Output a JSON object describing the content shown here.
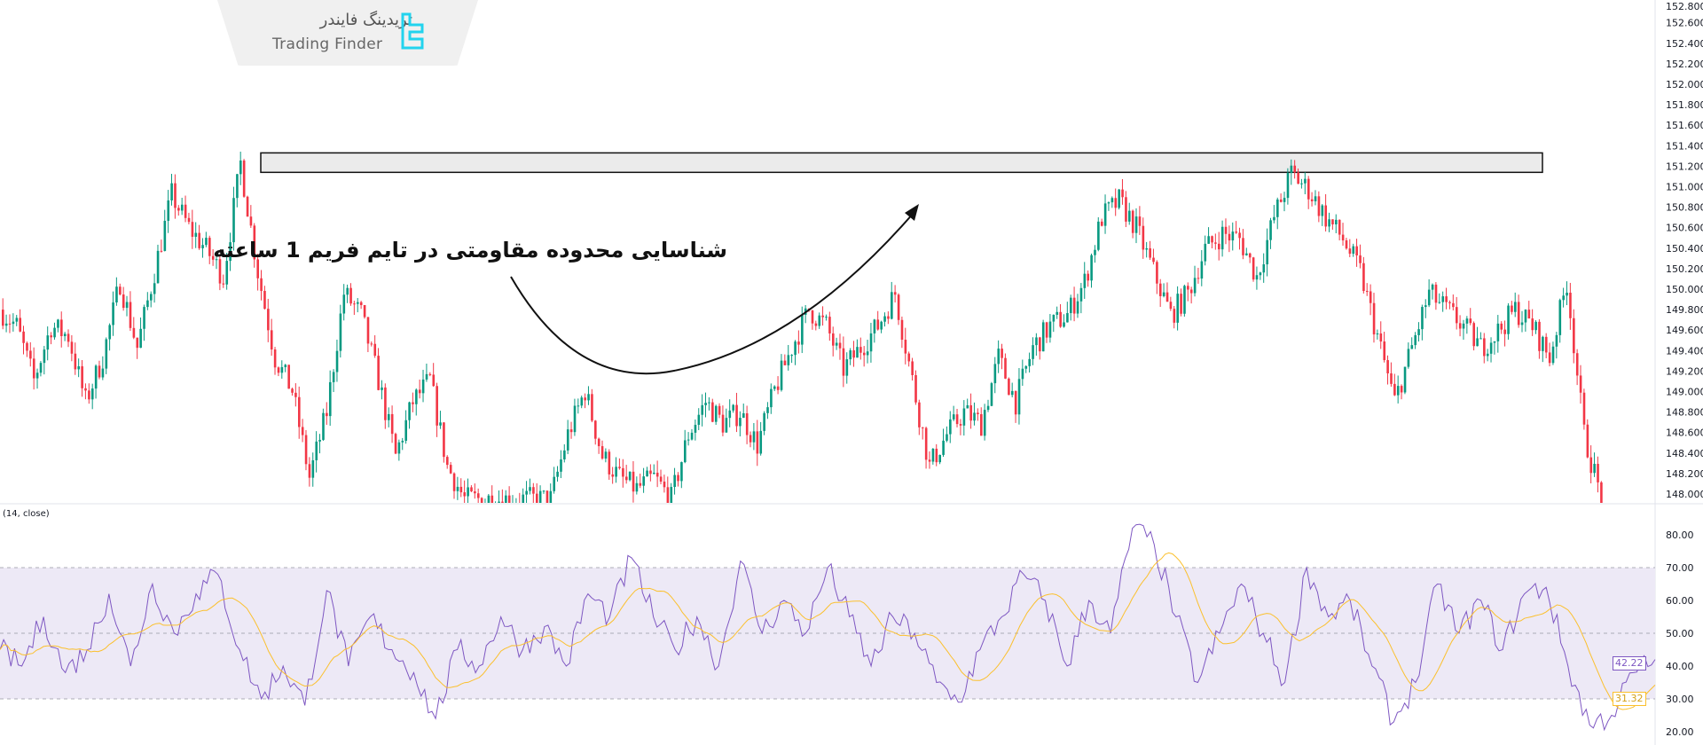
{
  "logo": {
    "text_fa": "تریدینگ فایندر",
    "text_en": "Trading Finder",
    "accent": "#22d3ee"
  },
  "annotation": {
    "text": "شناسایی محدوده مقاومتی در تایم فریم 1 ساعته"
  },
  "chart_data": [
    {
      "type": "candlestick",
      "title": "",
      "y_ticks": [
        "152.800",
        "152.600",
        "152.400",
        "152.200",
        "152.000",
        "151.800",
        "151.600",
        "151.400",
        "151.200",
        "151.000",
        "150.800",
        "150.600",
        "150.400",
        "150.200",
        "150.000",
        "149.800",
        "149.600",
        "149.400",
        "149.200",
        "149.000",
        "148.800",
        "148.600",
        "148.400",
        "148.200",
        "148.000"
      ],
      "ylim": [
        148.0,
        152.8
      ],
      "close_keypoints": [
        149.8,
        149.64,
        149.11,
        149.64,
        149.54,
        148.9,
        149.33,
        150.07,
        149.43,
        150.17,
        150.92,
        150.6,
        150.39,
        150.12,
        151.23,
        150.17,
        149.33,
        149.01,
        148.16,
        148.8,
        149.96,
        149.75,
        149.11,
        148.37,
        148.9,
        149.11,
        148.27,
        147.95,
        147.95,
        147.95,
        147.95,
        147.95,
        147.95,
        148.58,
        149.01,
        148.37,
        148.16,
        148.05,
        148.16,
        147.95,
        148.58,
        148.9,
        148.69,
        148.8,
        148.48,
        149.01,
        149.43,
        149.8,
        149.64,
        149.22,
        149.43,
        149.64,
        149.96,
        149.11,
        148.27,
        148.58,
        148.8,
        148.69,
        149.33,
        148.9,
        149.43,
        149.64,
        149.75,
        150.07,
        150.7,
        150.86,
        150.6,
        150.17,
        149.75,
        149.96,
        150.39,
        150.54,
        150.49,
        150.12,
        150.7,
        151.13,
        150.97,
        150.7,
        150.49,
        150.17,
        149.54,
        148.9,
        149.43,
        149.96,
        149.8,
        149.64,
        149.43,
        149.59,
        149.8,
        149.64,
        149.33,
        150.07,
        148.58,
        147.95
      ],
      "up_color": "#089981",
      "down_color": "#f23645",
      "resistance_zone": [
        151.14,
        151.33
      ],
      "grid": false
    },
    {
      "type": "line",
      "title": "(14, close)",
      "y_ticks": [
        "80.00",
        "70.00",
        "60.00",
        "50.00",
        "40.00",
        "30.00",
        "20.00"
      ],
      "ylim": [
        20,
        82
      ],
      "bands": {
        "upper": 70,
        "middle": 50,
        "lower": 30
      },
      "series": [
        {
          "values": [
            45,
            40,
            55,
            38,
            45,
            62,
            40,
            65,
            50,
            62,
            68,
            45,
            30,
            40,
            28,
            63,
            40,
            55,
            45,
            38,
            24,
            45,
            40,
            55,
            45,
            52,
            40,
            62,
            55,
            73,
            55,
            45,
            55,
            40,
            72,
            50,
            60,
            50,
            70,
            55,
            40,
            55,
            50,
            35,
            29,
            45,
            55,
            68,
            60,
            40,
            60,
            50,
            82,
            77,
            55,
            35,
            50,
            65,
            50,
            35,
            70,
            55,
            60,
            40,
            23,
            35,
            65,
            50,
            60,
            45,
            62,
            64,
            40,
            22,
            25,
            38,
            42
          ],
          "color": "#7e57c2",
          "last": "42.22"
        },
        {
          "color": "#fbc02d",
          "last": "31.32"
        }
      ]
    }
  ]
}
